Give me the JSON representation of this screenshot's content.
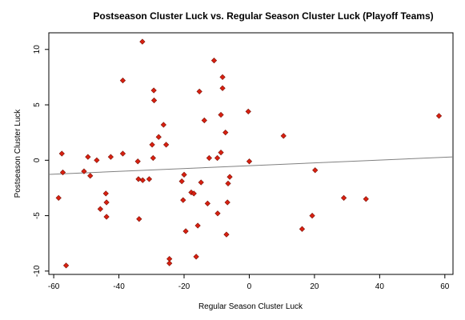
{
  "chart_data": {
    "type": "scatter",
    "title": "Postseason Cluster Luck vs. Regular Season Cluster Luck (Playoff Teams)",
    "xlabel": "Regular Season Cluster Luck",
    "ylabel": "Postseason Cluster Luck",
    "xlim": [
      -61.5,
      62.5
    ],
    "ylim": [
      -10.3,
      11.5
    ],
    "x_ticks": [
      -60,
      -40,
      -20,
      0,
      20,
      40,
      60
    ],
    "y_ticks": [
      -10,
      -5,
      0,
      5,
      10
    ],
    "grid": false,
    "legend": "none",
    "marker_color": "#d92010",
    "marker_edge_color": "#7a1208",
    "trend_line": {
      "color": "#808080",
      "points": [
        [
          -61.5,
          -1.28
        ],
        [
          62.5,
          0.3
        ]
      ]
    },
    "points": [
      {
        "x": -58.5,
        "y": -3.4
      },
      {
        "x": -57.5,
        "y": 0.6
      },
      {
        "x": -57.2,
        "y": -1.1
      },
      {
        "x": -56.2,
        "y": -9.5
      },
      {
        "x": -50.7,
        "y": -1.0
      },
      {
        "x": -49.5,
        "y": 0.3
      },
      {
        "x": -48.8,
        "y": -1.4
      },
      {
        "x": -46.8,
        "y": 0.0
      },
      {
        "x": -45.7,
        "y": -4.4
      },
      {
        "x": -44.0,
        "y": -3.0
      },
      {
        "x": -43.8,
        "y": -3.8
      },
      {
        "x": -43.8,
        "y": -5.1
      },
      {
        "x": -42.5,
        "y": 0.3
      },
      {
        "x": -38.8,
        "y": 7.2
      },
      {
        "x": -38.8,
        "y": 0.6
      },
      {
        "x": -34.2,
        "y": -0.1
      },
      {
        "x": -34.0,
        "y": -1.7
      },
      {
        "x": -33.8,
        "y": -5.3
      },
      {
        "x": -32.8,
        "y": 10.7
      },
      {
        "x": -32.7,
        "y": -1.8
      },
      {
        "x": -30.7,
        "y": -1.7
      },
      {
        "x": -29.8,
        "y": 1.4
      },
      {
        "x": -29.5,
        "y": 0.2
      },
      {
        "x": -29.3,
        "y": 6.3
      },
      {
        "x": -29.2,
        "y": 5.4
      },
      {
        "x": -27.8,
        "y": 2.1
      },
      {
        "x": -26.3,
        "y": 3.2
      },
      {
        "x": -25.5,
        "y": 1.4
      },
      {
        "x": -24.5,
        "y": -8.9
      },
      {
        "x": -24.5,
        "y": -9.3
      },
      {
        "x": -20.7,
        "y": -1.9
      },
      {
        "x": -20.3,
        "y": -3.6
      },
      {
        "x": -20.0,
        "y": -1.3
      },
      {
        "x": -19.5,
        "y": -6.4
      },
      {
        "x": -17.8,
        "y": -2.9
      },
      {
        "x": -17.0,
        "y": -3.0
      },
      {
        "x": -16.3,
        "y": -8.7
      },
      {
        "x": -15.8,
        "y": -5.9
      },
      {
        "x": -15.3,
        "y": 6.2
      },
      {
        "x": -14.8,
        "y": -2.0
      },
      {
        "x": -13.8,
        "y": 3.6
      },
      {
        "x": -12.8,
        "y": -3.9
      },
      {
        "x": -12.3,
        "y": 0.2
      },
      {
        "x": -10.8,
        "y": 9.0
      },
      {
        "x": -9.8,
        "y": 0.2
      },
      {
        "x": -9.7,
        "y": -4.8
      },
      {
        "x": -8.7,
        "y": 0.7
      },
      {
        "x": -8.7,
        "y": 4.1
      },
      {
        "x": -8.2,
        "y": 7.5
      },
      {
        "x": -8.2,
        "y": 6.5
      },
      {
        "x": -7.3,
        "y": 2.5
      },
      {
        "x": -7.0,
        "y": -6.7
      },
      {
        "x": -6.7,
        "y": -3.8
      },
      {
        "x": -6.5,
        "y": -2.1
      },
      {
        "x": -6.0,
        "y": -1.5
      },
      {
        "x": -0.3,
        "y": 4.4
      },
      {
        "x": 0.0,
        "y": -0.1
      },
      {
        "x": 10.5,
        "y": 2.2
      },
      {
        "x": 16.2,
        "y": -6.2
      },
      {
        "x": 19.3,
        "y": -5.0
      },
      {
        "x": 20.2,
        "y": -0.9
      },
      {
        "x": 29.0,
        "y": -3.4
      },
      {
        "x": 35.8,
        "y": -3.5
      },
      {
        "x": 58.2,
        "y": 4.0
      }
    ]
  }
}
